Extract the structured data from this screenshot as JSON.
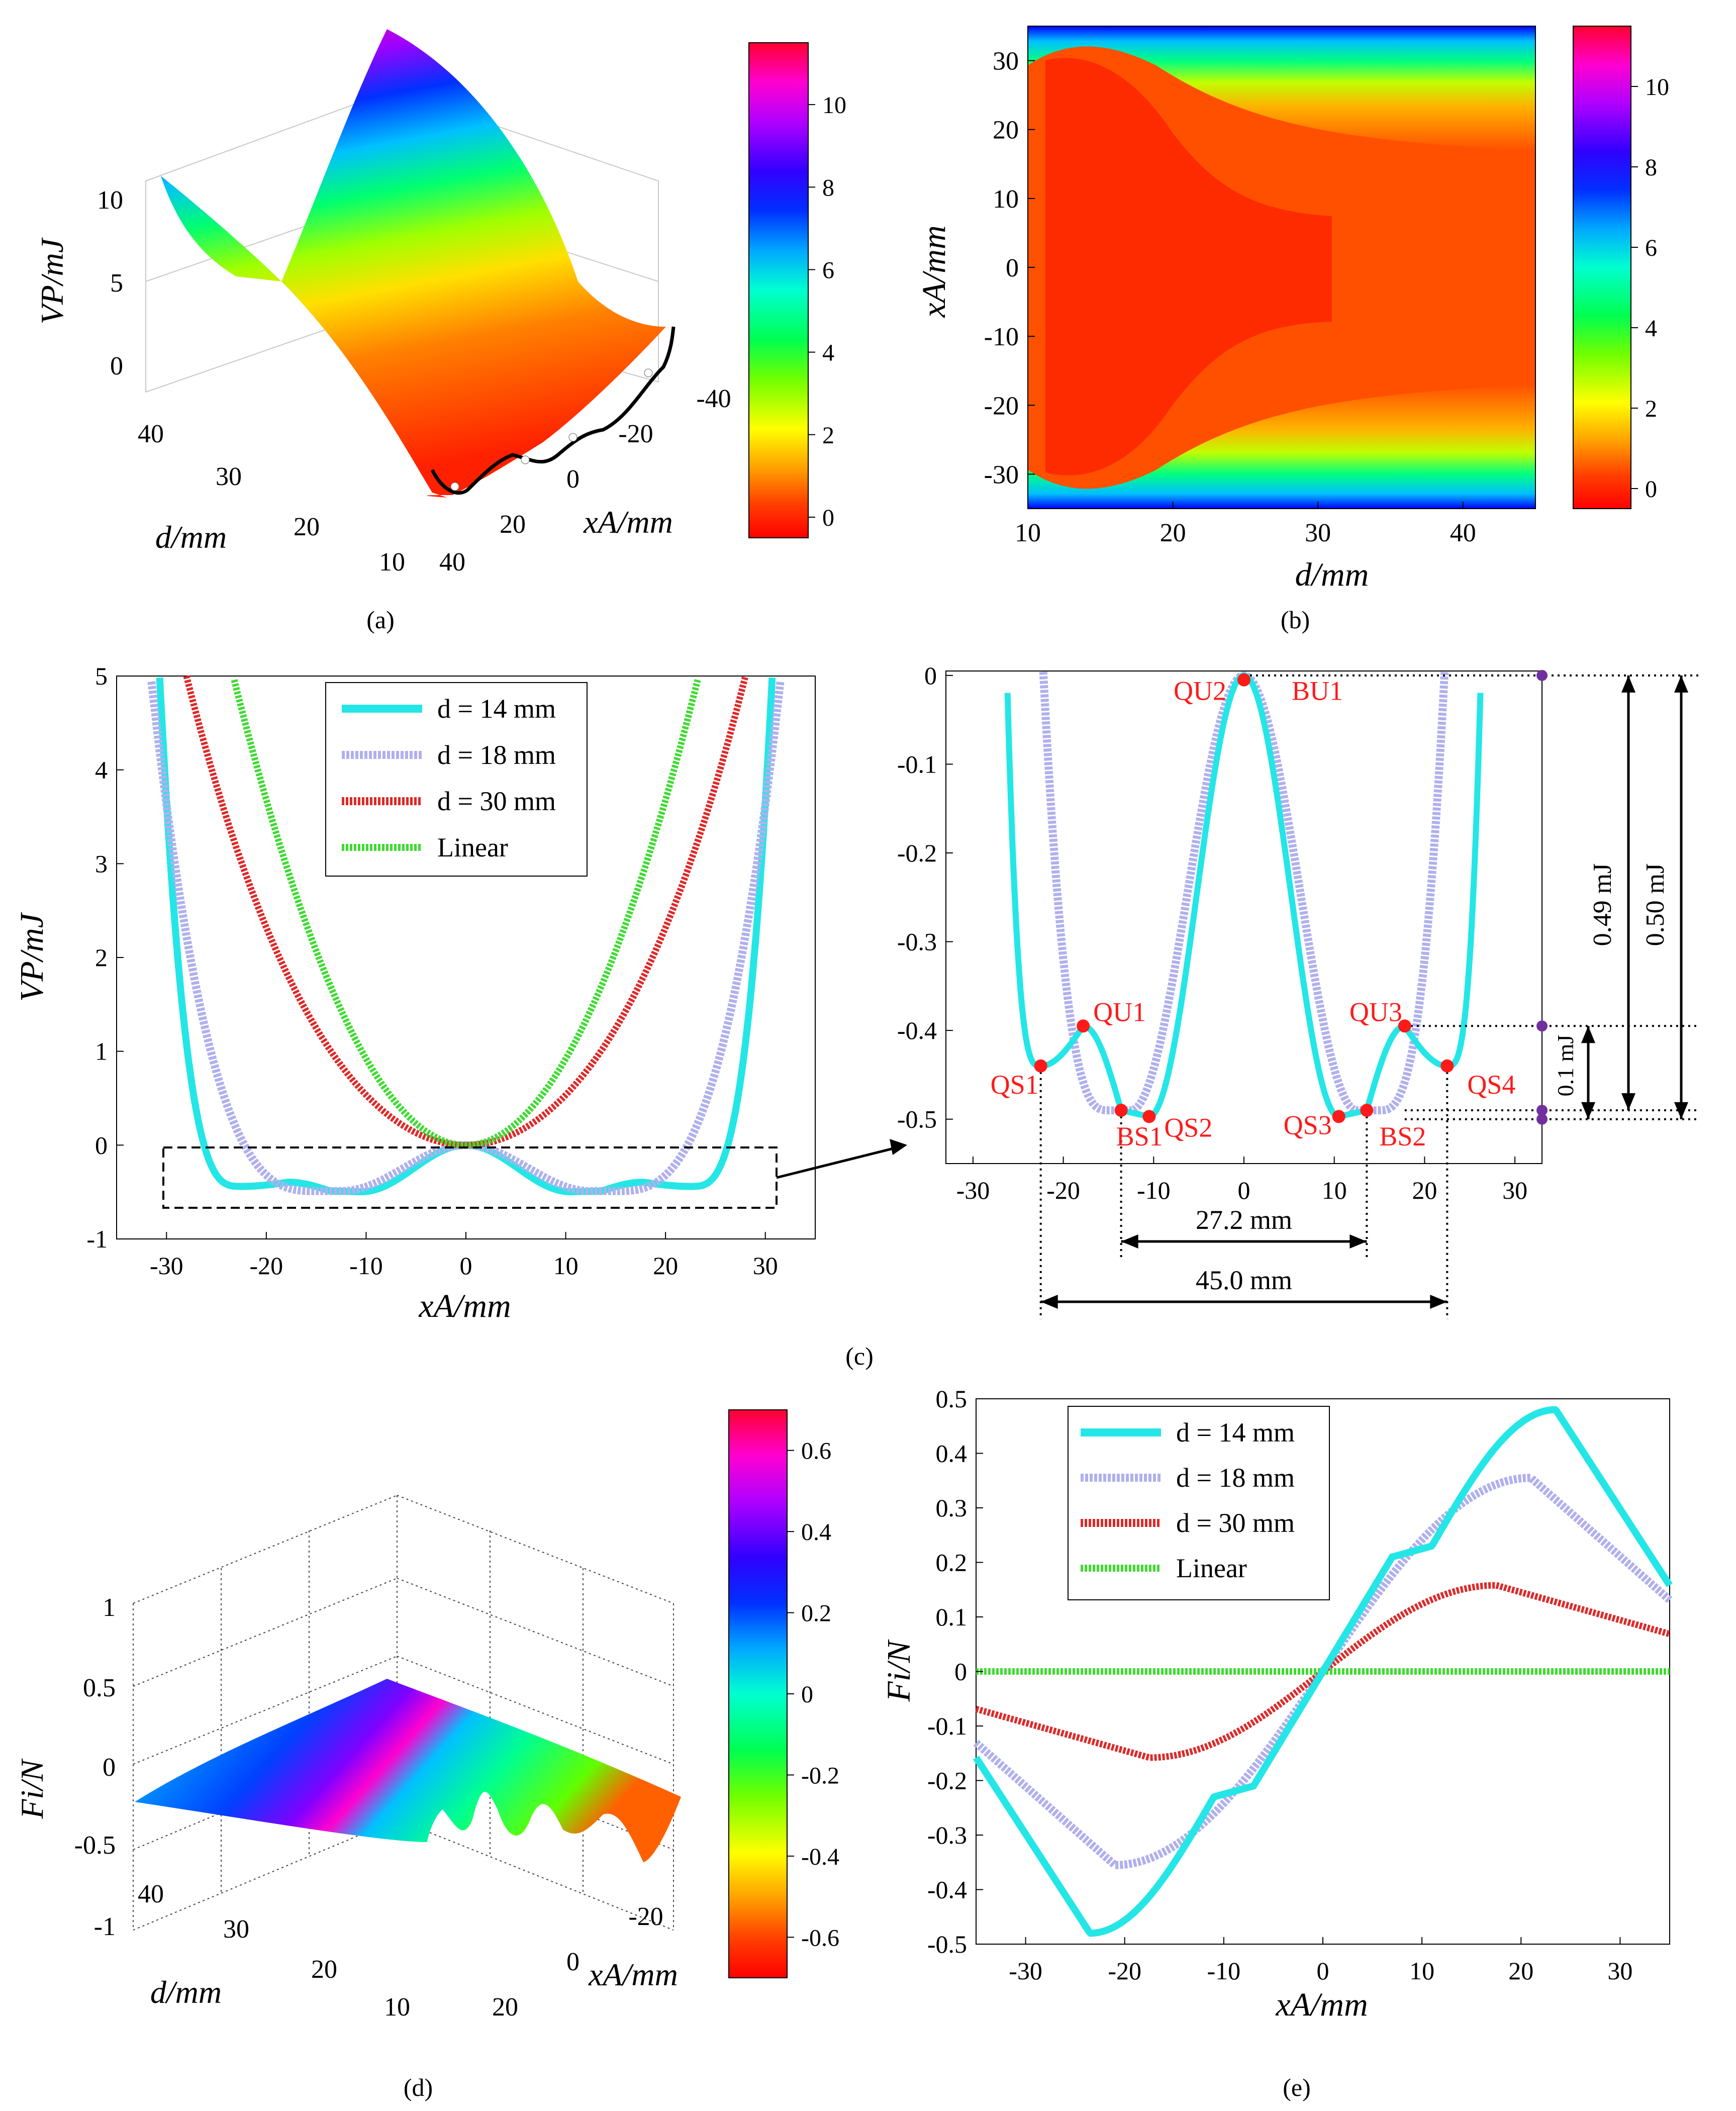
{
  "colormap": [
    "#ff0000",
    "#ff5000",
    "#ffa000",
    "#ffff00",
    "#80ff00",
    "#00ff40",
    "#00ffc0",
    "#00c0ff",
    "#0050ff",
    "#0000ff",
    "#8000ff",
    "#ff00ff",
    "#ff0080"
  ],
  "panel_labels": {
    "a": "(a)",
    "b": "(b)",
    "c": "(c)",
    "d": "(d)",
    "e": "(e)"
  },
  "chart_data": [
    {
      "id": "a",
      "type": "surface",
      "zlabel": "VP/mJ",
      "xlabel": "xA/mm",
      "ylabel": "d/mm",
      "zticks": [
        "0",
        "5",
        "10"
      ],
      "xticks": [
        "40",
        "20",
        "0",
        "-20",
        "-40"
      ],
      "yticks": [
        "10",
        "20",
        "30",
        "40"
      ],
      "colorbar_ticks": [
        "0",
        "2",
        "4",
        "6",
        "8",
        "10"
      ],
      "colorbar_range": [
        -0.5,
        11.5
      ]
    },
    {
      "id": "b",
      "type": "heatmap",
      "xlabel": "d/mm",
      "ylabel": "xA/mm",
      "xlim": [
        10,
        45
      ],
      "ylim": [
        -35,
        35
      ],
      "xticks": [
        "10",
        "20",
        "30",
        "40"
      ],
      "yticks": [
        "-30",
        "-20",
        "-10",
        "0",
        "10",
        "20",
        "30"
      ],
      "colorbar_ticks": [
        "0",
        "2",
        "4",
        "6",
        "8",
        "10"
      ],
      "colorbar_range": [
        -0.5,
        11.5
      ]
    },
    {
      "id": "c-left",
      "type": "line",
      "xlabel": "xA/mm",
      "ylabel": "VP/mJ",
      "xlim": [
        -35,
        35
      ],
      "ylim": [
        -1,
        5
      ],
      "xticks": [
        "-30",
        "-20",
        "-10",
        "0",
        "10",
        "20",
        "30"
      ],
      "yticks": [
        "-1",
        "0",
        "1",
        "2",
        "3",
        "4",
        "5"
      ],
      "series": [
        {
          "name": "d = 14 mm",
          "color": "#25e6e6"
        },
        {
          "name": "d = 18 mm",
          "color": "#b0b0ee"
        },
        {
          "name": "d = 30 mm",
          "color": "#e02828"
        },
        {
          "name": "Linear",
          "color": "#3ddc30"
        }
      ],
      "legend_position": "top-center"
    },
    {
      "id": "c-right",
      "type": "line",
      "xlim": [
        -33,
        33
      ],
      "ylim": [
        -0.55,
        0
      ],
      "xticks": [
        "-30",
        "-20",
        "-10",
        "0",
        "10",
        "20",
        "30"
      ],
      "yticks": [
        "0",
        "-0.1",
        "-0.2",
        "-0.3",
        "-0.4",
        "-0.5"
      ],
      "points": [
        {
          "label": "QS1",
          "x": -22.5,
          "y": -0.44
        },
        {
          "label": "QU1",
          "x": -17.8,
          "y": -0.395
        },
        {
          "label": "BS1",
          "x": -13.6,
          "y": -0.49
        },
        {
          "label": "QS2",
          "x": -10.5,
          "y": -0.497
        },
        {
          "label": "QU2",
          "x": 0,
          "y": -0.005
        },
        {
          "label": "BU1",
          "x": 0,
          "y": -0.005
        },
        {
          "label": "QS3",
          "x": 10.5,
          "y": -0.497
        },
        {
          "label": "BS2",
          "x": 13.6,
          "y": -0.49
        },
        {
          "label": "QU3",
          "x": 17.8,
          "y": -0.395
        },
        {
          "label": "QS4",
          "x": 22.5,
          "y": -0.44
        }
      ],
      "annotations": {
        "gap_0_49": "0.49 mJ",
        "gap_0_50": "0.50 mJ",
        "gap_0_1": "0.1 mJ",
        "span_27": "27.2 mm",
        "span_45": "45.0 mm"
      }
    },
    {
      "id": "d",
      "type": "surface",
      "zlabel": "Fi/N",
      "xlabel": "xA/mm",
      "ylabel": "d/mm",
      "zticks": [
        "-1",
        "-0.5",
        "0",
        "0.5",
        "1"
      ],
      "xticks": [
        "20",
        "0",
        "-20"
      ],
      "yticks": [
        "10",
        "20",
        "30",
        "40"
      ],
      "colorbar_ticks": [
        "-0.6",
        "-0.4",
        "-0.2",
        "0",
        "0.2",
        "0.4",
        "0.6"
      ],
      "colorbar_range": [
        -0.7,
        0.7
      ]
    },
    {
      "id": "e",
      "type": "line",
      "xlabel": "xA/mm",
      "ylabel": "Fi/N",
      "xlim": [
        -35,
        35
      ],
      "ylim": [
        -0.5,
        0.5
      ],
      "xticks": [
        "-30",
        "-20",
        "-10",
        "0",
        "10",
        "20",
        "30"
      ],
      "yticks": [
        "-0.5",
        "-0.4",
        "-0.3",
        "-0.2",
        "-0.1",
        "0",
        "0.1",
        "0.2",
        "0.3",
        "0.4",
        "0.5"
      ],
      "series": [
        {
          "name": "d = 14 mm",
          "color": "#25e6e6"
        },
        {
          "name": "d = 18 mm",
          "color": "#b0b0ee"
        },
        {
          "name": "d = 30 mm",
          "color": "#e02828"
        },
        {
          "name": "Linear",
          "color": "#3ddc30"
        }
      ],
      "legend_position": "top-left"
    }
  ]
}
